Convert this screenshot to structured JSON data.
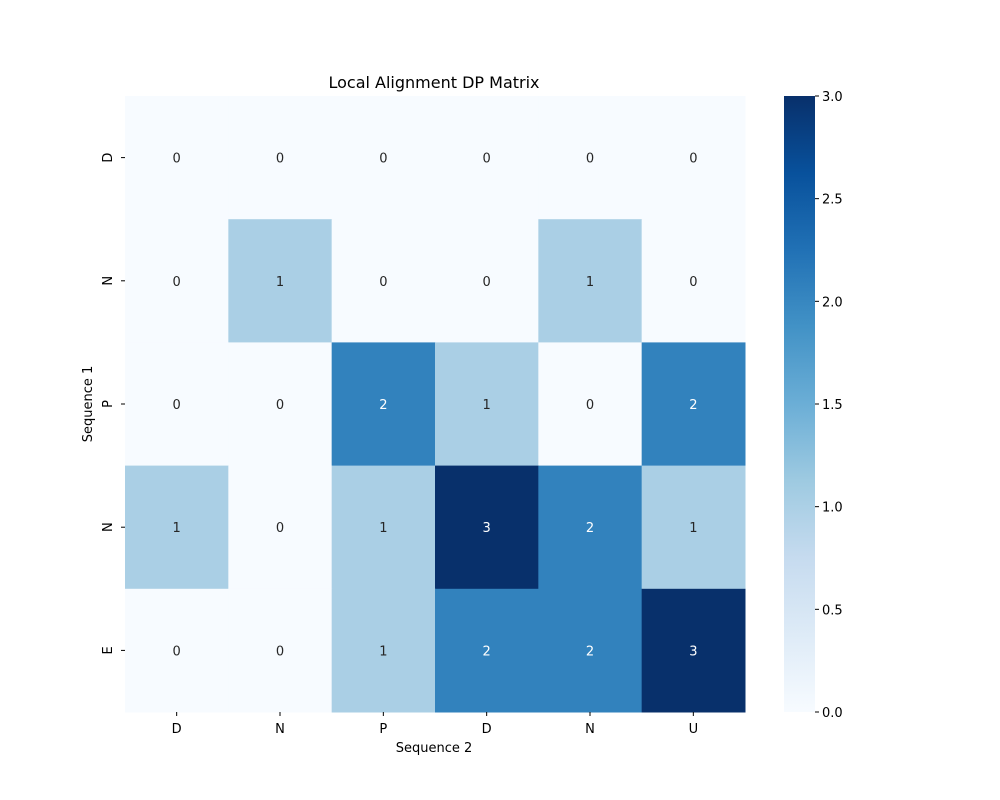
{
  "chart_data": {
    "type": "heatmap",
    "title": "Local Alignment DP Matrix",
    "xlabel": "Sequence 2",
    "ylabel": "Sequence 1",
    "x_categories": [
      "D",
      "N",
      "P",
      "D",
      "N",
      "U"
    ],
    "y_categories": [
      "D",
      "N",
      "P",
      "N",
      "E"
    ],
    "values": [
      [
        0,
        0,
        0,
        0,
        0,
        0
      ],
      [
        0,
        1,
        0,
        0,
        1,
        0
      ],
      [
        0,
        0,
        2,
        1,
        0,
        2
      ],
      [
        1,
        0,
        1,
        3,
        2,
        1
      ],
      [
        0,
        0,
        1,
        2,
        2,
        3
      ]
    ],
    "annotated": true,
    "colormap": "Blues",
    "colorbar": {
      "range": [
        0,
        3
      ],
      "ticks": [
        "0.0",
        "0.5",
        "1.0",
        "1.5",
        "2.0",
        "2.5",
        "3.0"
      ]
    },
    "colors": {
      "0": "#f7fbff",
      "1": "#aacfe5",
      "2": "#3282bd",
      "3": "#08306b"
    },
    "grid": false
  }
}
